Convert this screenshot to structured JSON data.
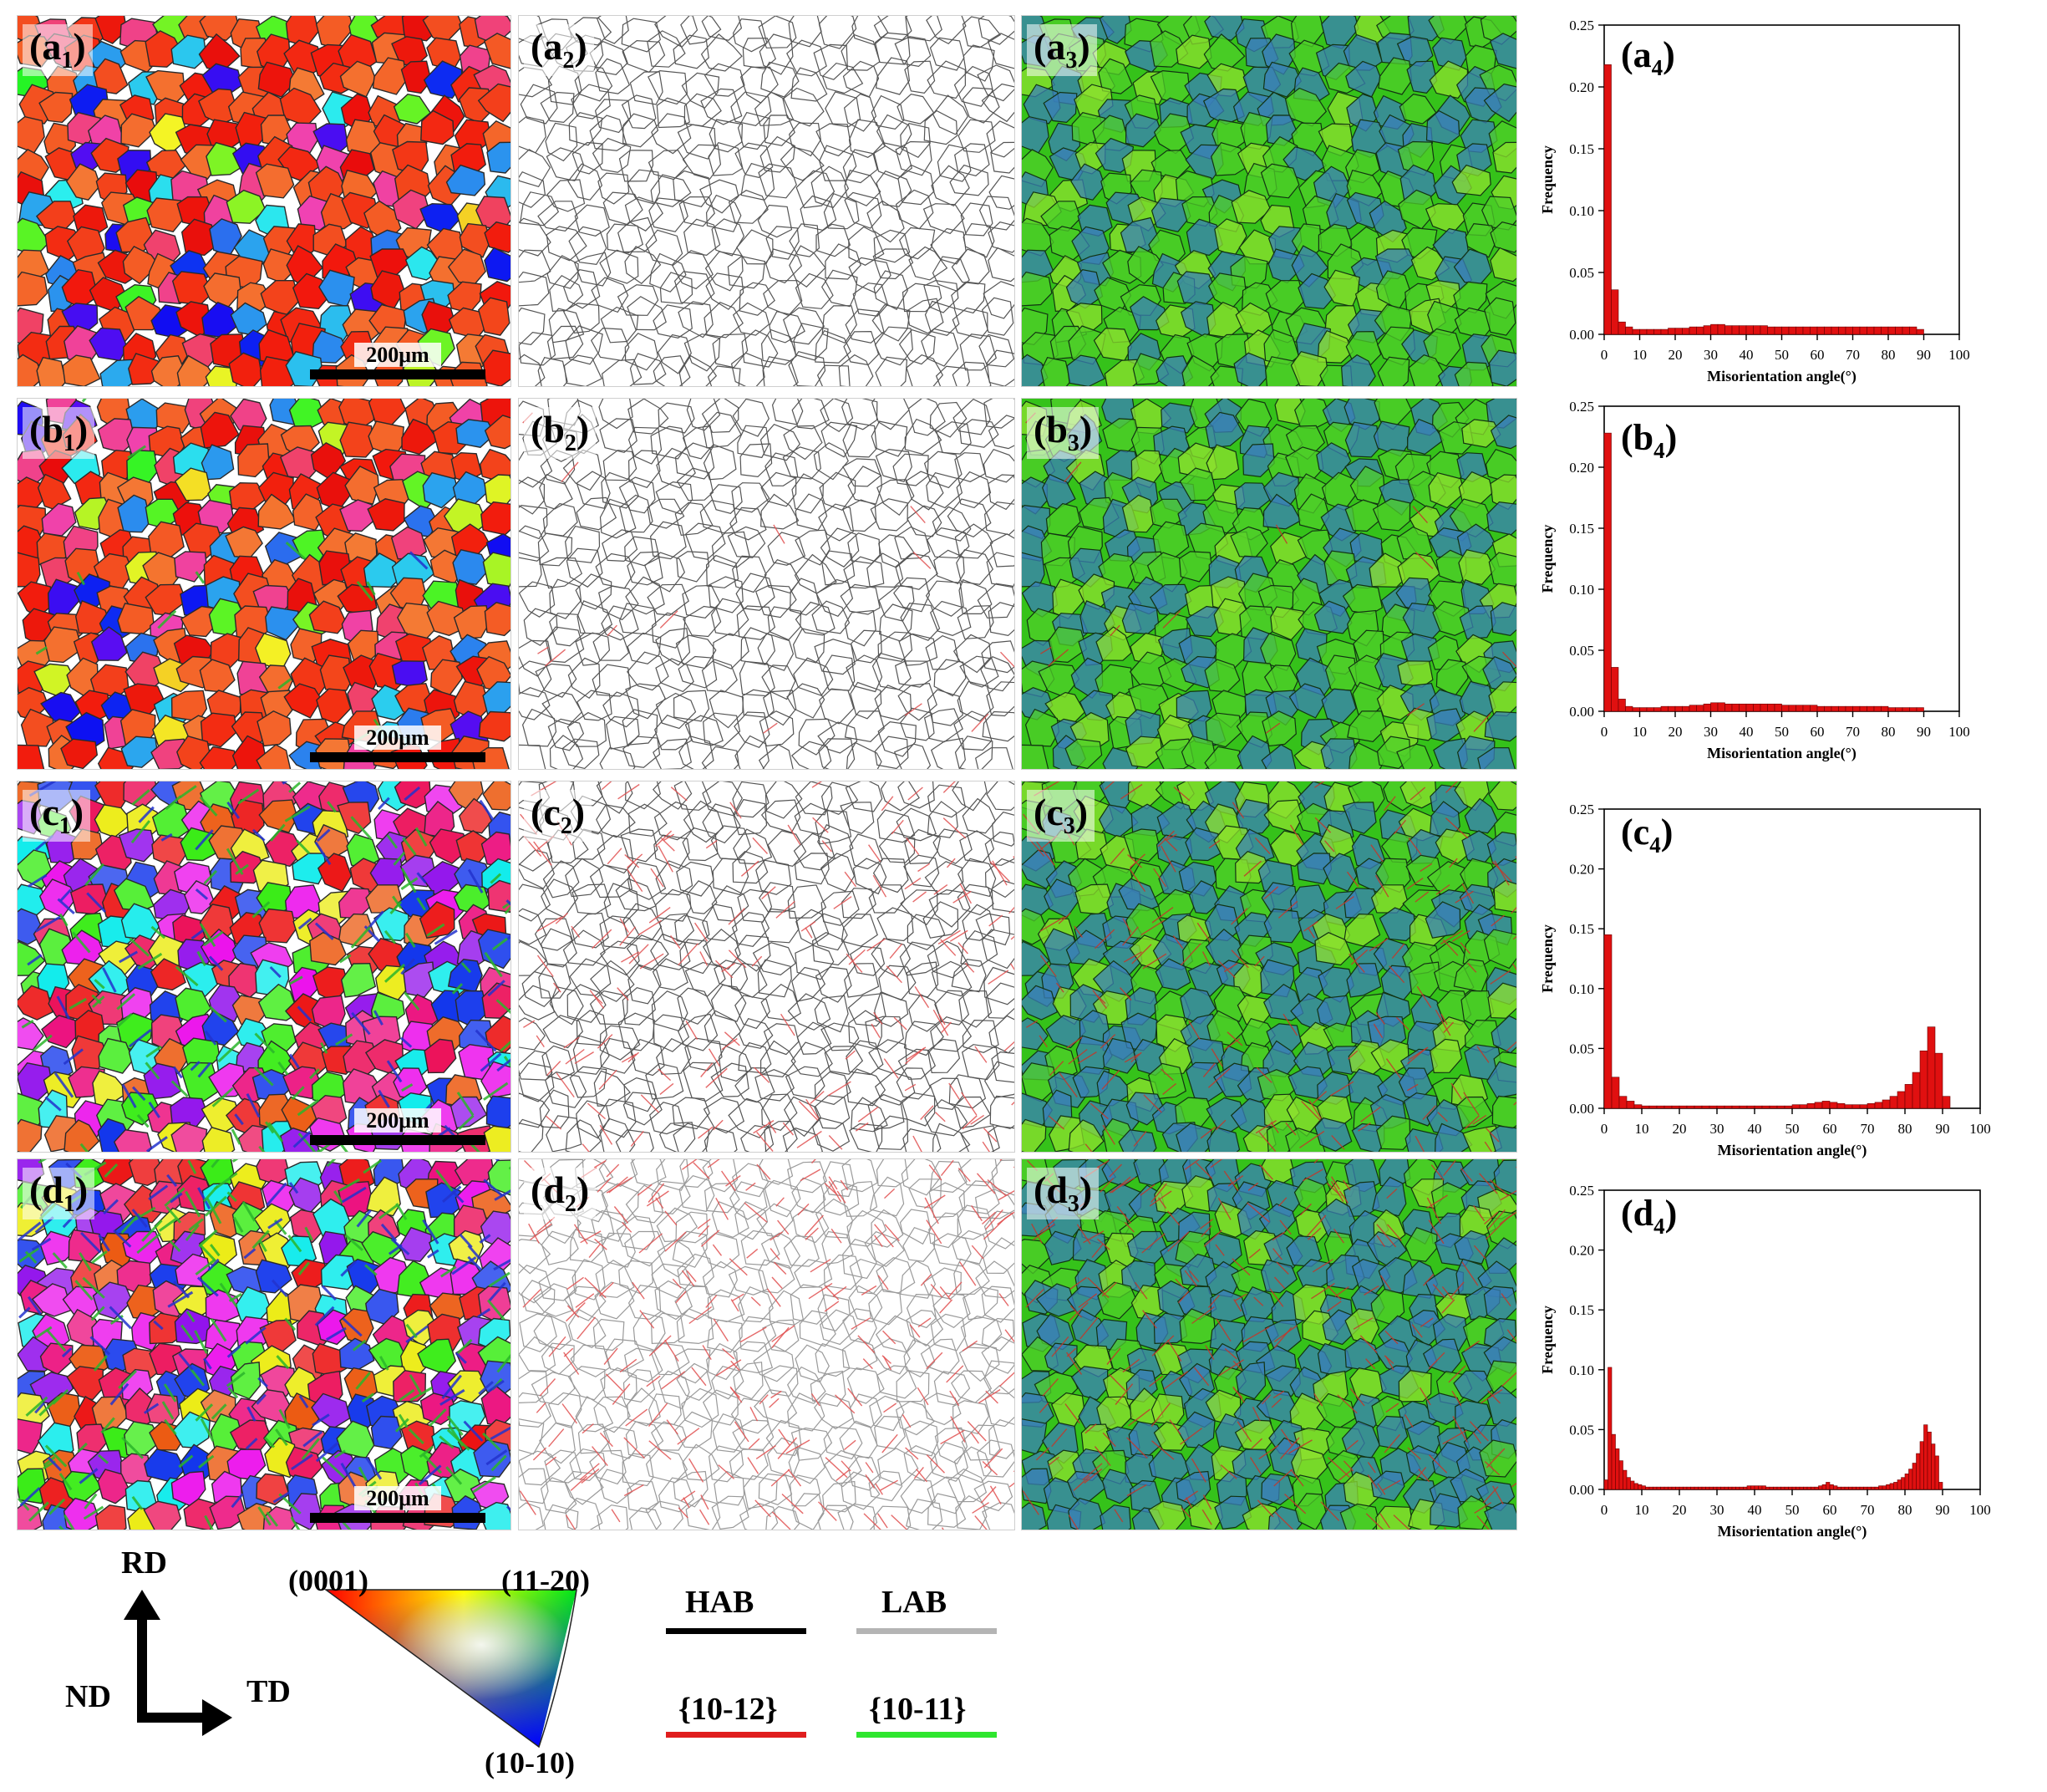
{
  "rows": [
    {
      "id": "a",
      "ipf_label": {
        "letter": "a",
        "sub": "1"
      },
      "gb_label": {
        "letter": "a",
        "sub": "2"
      },
      "kam_label": {
        "letter": "a",
        "sub": "3"
      },
      "scale_bar": "200μm",
      "ipf_hue": "red",
      "twins": 0.0
    },
    {
      "id": "b",
      "ipf_label": {
        "letter": "b",
        "sub": "1"
      },
      "gb_label": {
        "letter": "b",
        "sub": "2"
      },
      "kam_label": {
        "letter": "b",
        "sub": "3"
      },
      "scale_bar": "200μm",
      "ipf_hue": "red",
      "twins": 0.05
    },
    {
      "id": "c",
      "ipf_label": {
        "letter": "c",
        "sub": "1"
      },
      "gb_label": {
        "letter": "c",
        "sub": "2"
      },
      "kam_label": {
        "letter": "c",
        "sub": "3"
      },
      "scale_bar": "200μm",
      "ipf_hue": "mixed",
      "twins": 0.6
    },
    {
      "id": "d",
      "ipf_label": {
        "letter": "d",
        "sub": "1"
      },
      "gb_label": {
        "letter": "d",
        "sub": "2"
      },
      "kam_label": {
        "letter": "d",
        "sub": "3"
      },
      "scale_bar": "200μm",
      "ipf_hue": "mixed",
      "twins": 0.9
    }
  ],
  "chart_data": [
    {
      "type": "bar",
      "label": {
        "letter": "a",
        "sub": "4"
      },
      "xlabel": "Misorientation angle(°)",
      "ylabel": "Frequency",
      "xlim": [
        0,
        100
      ],
      "ylim": [
        0,
        0.25
      ],
      "xticks": [
        0,
        10,
        20,
        30,
        40,
        50,
        60,
        70,
        80,
        90,
        100
      ],
      "yticks": [
        0.0,
        0.05,
        0.1,
        0.15,
        0.2,
        0.25
      ],
      "bin_width": 2,
      "values": [
        0.218,
        0.036,
        0.01,
        0.006,
        0.004,
        0.004,
        0.004,
        0.004,
        0.004,
        0.005,
        0.005,
        0.005,
        0.006,
        0.006,
        0.007,
        0.008,
        0.008,
        0.007,
        0.007,
        0.007,
        0.007,
        0.007,
        0.007,
        0.006,
        0.006,
        0.006,
        0.006,
        0.006,
        0.006,
        0.006,
        0.006,
        0.006,
        0.006,
        0.006,
        0.006,
        0.006,
        0.006,
        0.006,
        0.006,
        0.006,
        0.006,
        0.006,
        0.006,
        0.006,
        0.004
      ]
    },
    {
      "type": "bar",
      "label": {
        "letter": "b",
        "sub": "4"
      },
      "xlabel": "Misorientation angle(°)",
      "ylabel": "Frequency",
      "xlim": [
        0,
        100
      ],
      "ylim": [
        0,
        0.25
      ],
      "xticks": [
        0,
        10,
        20,
        30,
        40,
        50,
        60,
        70,
        80,
        90,
        100
      ],
      "yticks": [
        0.0,
        0.05,
        0.1,
        0.15,
        0.2,
        0.25
      ],
      "bin_width": 2,
      "values": [
        0.228,
        0.036,
        0.01,
        0.004,
        0.003,
        0.003,
        0.003,
        0.003,
        0.004,
        0.004,
        0.004,
        0.004,
        0.005,
        0.005,
        0.006,
        0.007,
        0.007,
        0.006,
        0.006,
        0.006,
        0.006,
        0.006,
        0.006,
        0.006,
        0.006,
        0.005,
        0.005,
        0.005,
        0.005,
        0.005,
        0.004,
        0.004,
        0.004,
        0.004,
        0.004,
        0.004,
        0.004,
        0.004,
        0.004,
        0.004,
        0.003,
        0.003,
        0.003,
        0.003,
        0.003
      ]
    },
    {
      "type": "bar",
      "label": {
        "letter": "c",
        "sub": "4"
      },
      "xlabel": "Misorientation angle(°)",
      "ylabel": "Frequency",
      "xlim": [
        0,
        100
      ],
      "ylim": [
        0,
        0.25
      ],
      "xticks": [
        0,
        10,
        20,
        30,
        40,
        50,
        60,
        70,
        80,
        90,
        100
      ],
      "yticks": [
        0.0,
        0.05,
        0.1,
        0.15,
        0.2,
        0.25
      ],
      "bin_width": 2,
      "values": [
        0.145,
        0.026,
        0.01,
        0.006,
        0.003,
        0.002,
        0.002,
        0.002,
        0.002,
        0.002,
        0.002,
        0.002,
        0.002,
        0.002,
        0.002,
        0.002,
        0.002,
        0.002,
        0.002,
        0.002,
        0.002,
        0.002,
        0.002,
        0.002,
        0.002,
        0.003,
        0.003,
        0.004,
        0.005,
        0.006,
        0.005,
        0.004,
        0.003,
        0.003,
        0.003,
        0.004,
        0.005,
        0.007,
        0.01,
        0.014,
        0.02,
        0.03,
        0.048,
        0.068,
        0.046,
        0.01
      ]
    },
    {
      "type": "bar",
      "label": {
        "letter": "d",
        "sub": "4"
      },
      "xlabel": "Misorientation angle(°)",
      "ylabel": "Frequency",
      "xlim": [
        0,
        100
      ],
      "ylim": [
        0,
        0.25
      ],
      "xticks": [
        0,
        10,
        20,
        30,
        40,
        50,
        60,
        70,
        80,
        90,
        100
      ],
      "yticks": [
        0.0,
        0.05,
        0.1,
        0.15,
        0.2,
        0.25
      ],
      "bin_width": 1,
      "values": [
        0.008,
        0.102,
        0.046,
        0.034,
        0.024,
        0.016,
        0.01,
        0.007,
        0.005,
        0.004,
        0.003,
        0.002,
        0.002,
        0.002,
        0.002,
        0.002,
        0.002,
        0.002,
        0.002,
        0.002,
        0.002,
        0.002,
        0.002,
        0.002,
        0.002,
        0.002,
        0.002,
        0.002,
        0.002,
        0.002,
        0.002,
        0.002,
        0.002,
        0.002,
        0.002,
        0.002,
        0.002,
        0.002,
        0.003,
        0.003,
        0.003,
        0.003,
        0.003,
        0.002,
        0.002,
        0.002,
        0.002,
        0.002,
        0.002,
        0.002,
        0.002,
        0.002,
        0.002,
        0.002,
        0.002,
        0.002,
        0.002,
        0.003,
        0.004,
        0.006,
        0.004,
        0.003,
        0.002,
        0.002,
        0.002,
        0.002,
        0.002,
        0.002,
        0.002,
        0.002,
        0.002,
        0.002,
        0.002,
        0.003,
        0.003,
        0.004,
        0.005,
        0.006,
        0.008,
        0.01,
        0.013,
        0.017,
        0.022,
        0.03,
        0.04,
        0.054,
        0.048,
        0.038,
        0.028,
        0.006
      ]
    }
  ],
  "legend": {
    "axes": {
      "rd": "RD",
      "nd": "ND",
      "td": "TD"
    },
    "ipf": {
      "top_left": "(0001)",
      "top_right": "(11-20)",
      "bottom": "(10-10)"
    },
    "boundaries": [
      {
        "label": "HAB",
        "color": "#000000"
      },
      {
        "label": "LAB",
        "color": "#b4b4b4"
      },
      {
        "label": "{10-12}",
        "color": "#e01e1e"
      },
      {
        "label": "{10-11}",
        "color": "#2ee62e"
      }
    ]
  },
  "colors": {
    "bar_fill": "#e01010",
    "bar_edge": "#6a0000",
    "kam_green": "#35c21a",
    "kam_blue": "#3a7fb8"
  }
}
